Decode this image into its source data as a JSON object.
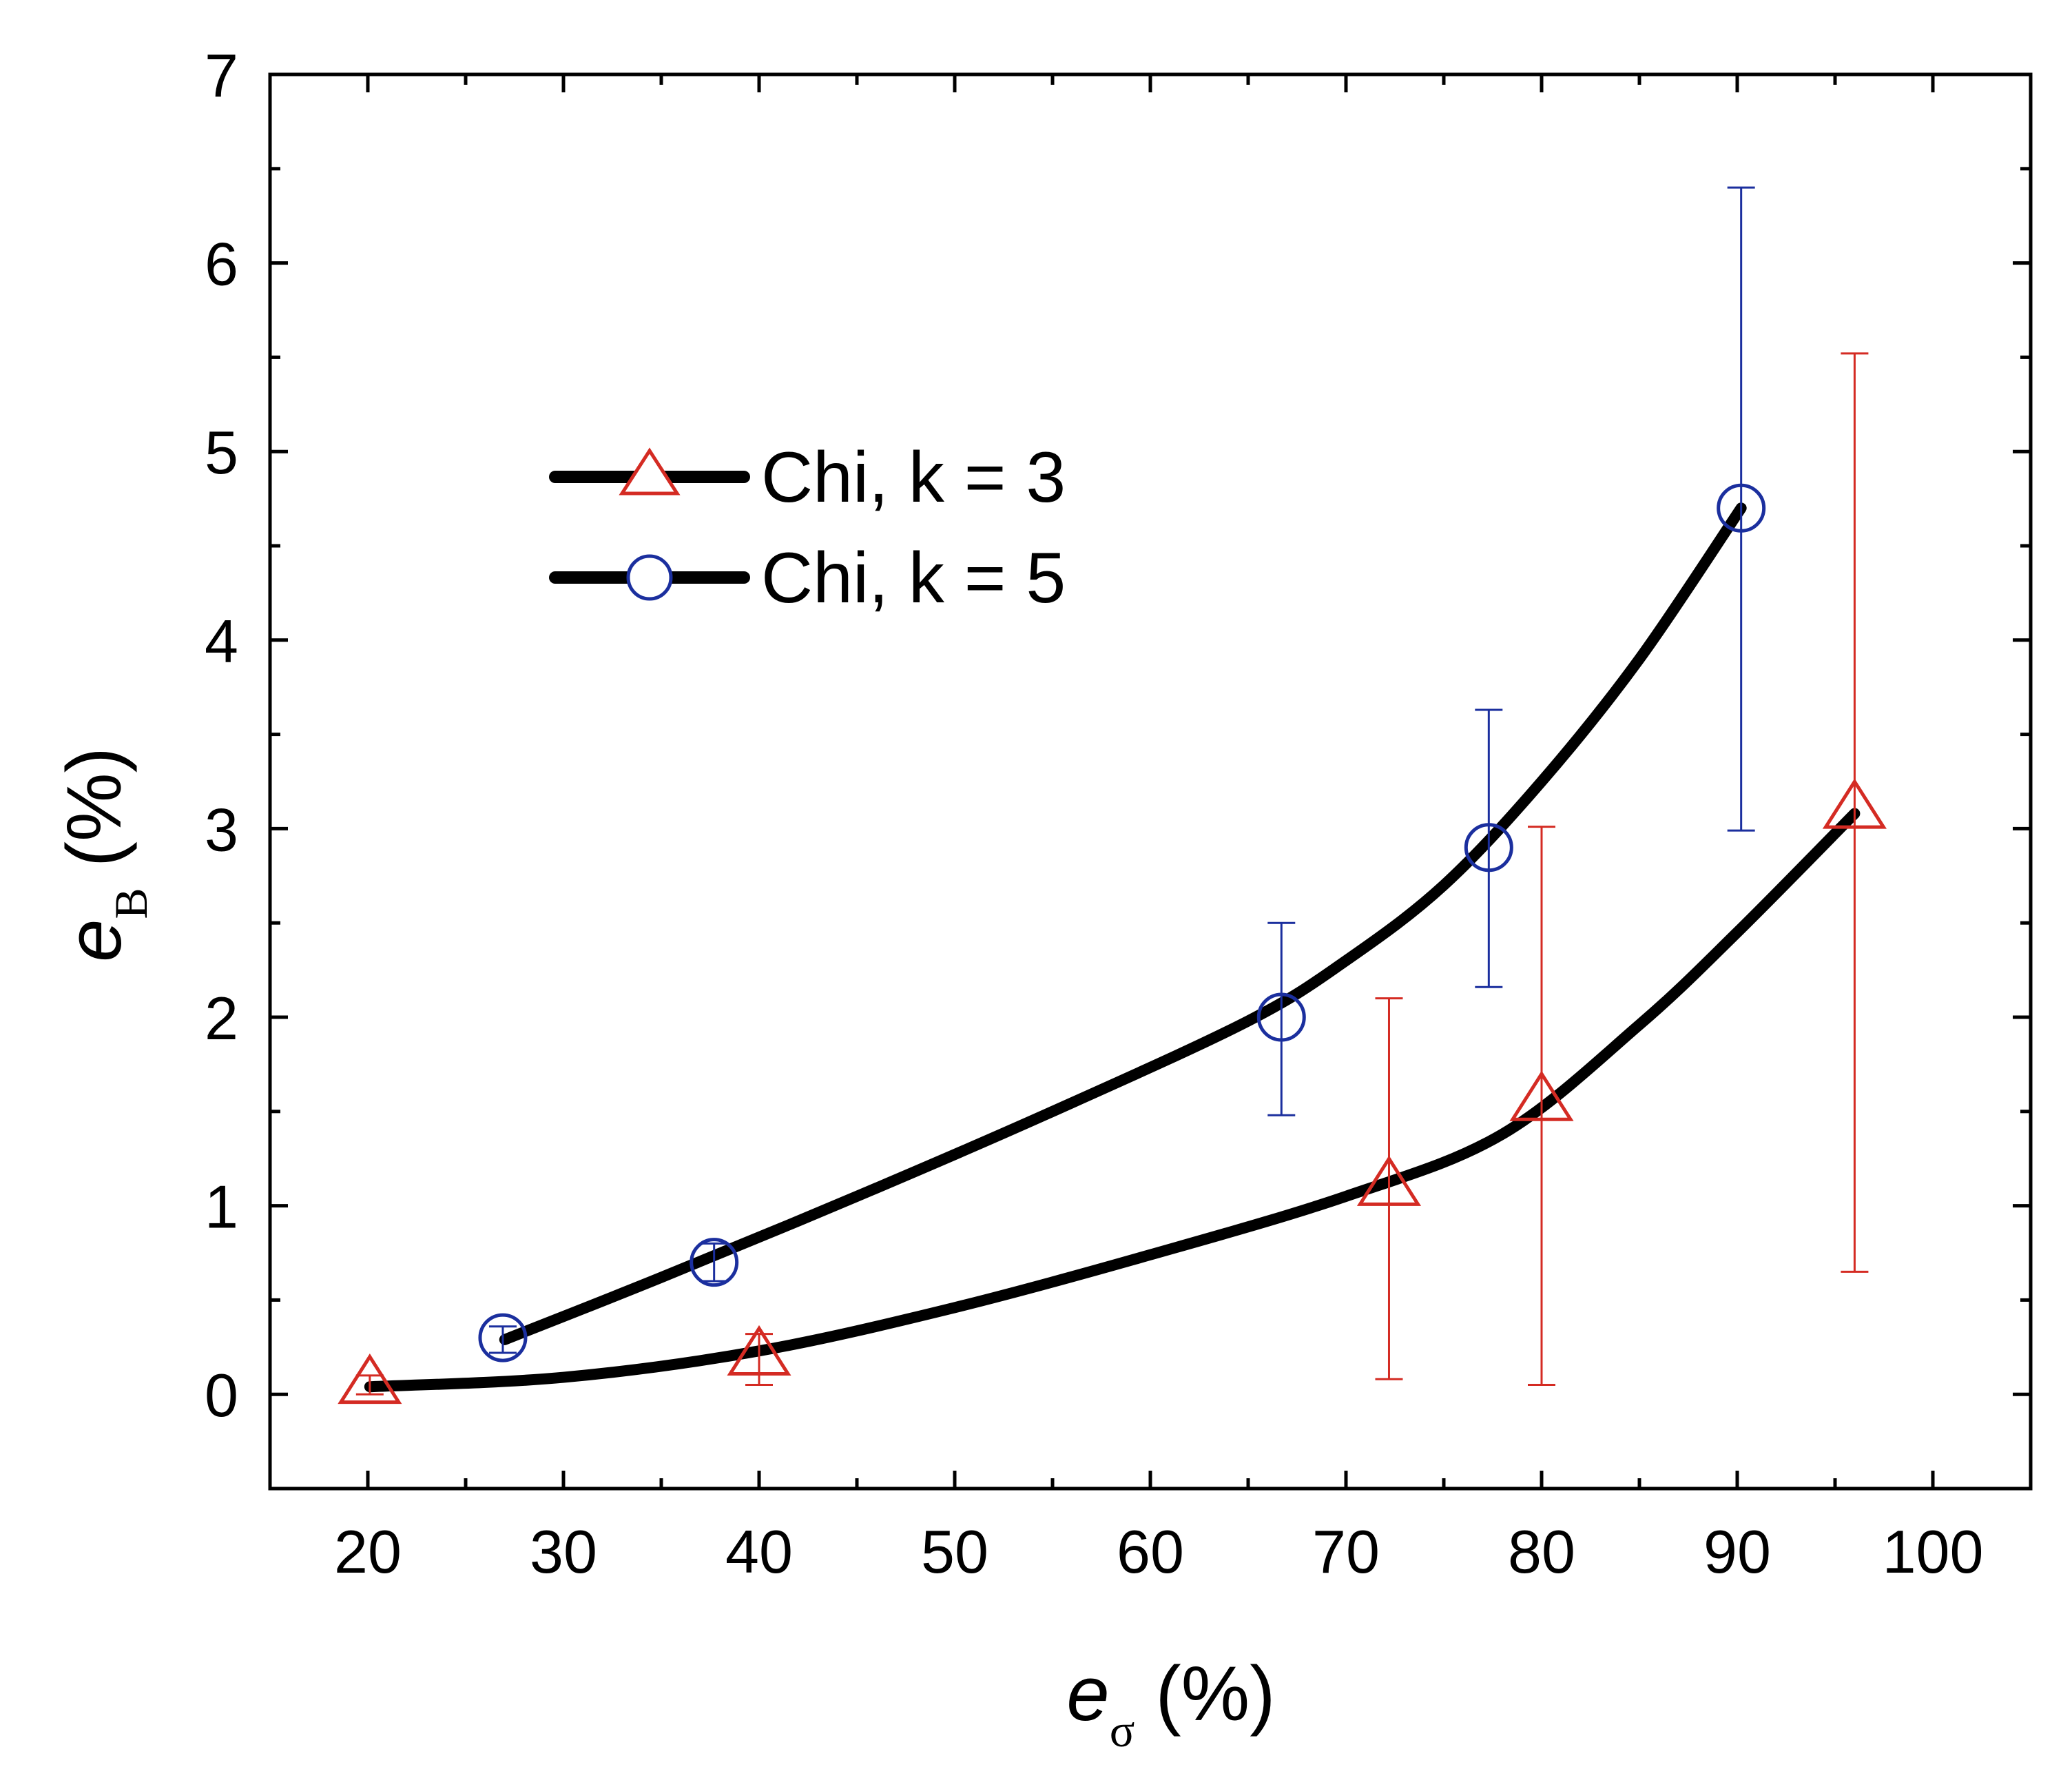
{
  "chart_data": {
    "type": "scatter",
    "title": "",
    "xlabel": {
      "symbol": "e",
      "subscript": "σ",
      "unit": "(%)"
    },
    "ylabel": {
      "symbol": "e",
      "subscript": "B",
      "unit": "(%)"
    },
    "xlim": [
      15,
      105
    ],
    "ylim": [
      -0.5,
      7
    ],
    "x_ticks": [
      20,
      30,
      40,
      50,
      60,
      70,
      80,
      90,
      100
    ],
    "y_ticks": [
      0,
      1,
      2,
      3,
      4,
      5,
      6,
      7
    ],
    "x_minor_ticks": [
      15,
      25,
      35,
      45,
      55,
      65,
      75,
      85,
      95,
      105
    ],
    "y_minor_ticks": [
      -0.5,
      0.5,
      1.5,
      2.5,
      3.5,
      4.5,
      5.5,
      6.5
    ],
    "legend_position": "upper-left",
    "series": [
      {
        "name": "Chi, k = 3",
        "marker": "triangle",
        "color": "#d42b23",
        "line_color": "#000000",
        "points": [
          {
            "x": 20.1,
            "y": 0.05,
            "err_low": 0.05,
            "err_high": 0.05
          },
          {
            "x": 40.0,
            "y": 0.2,
            "err_low": 0.15,
            "err_high": 0.12
          },
          {
            "x": 72.2,
            "y": 1.1,
            "err_low": 1.02,
            "err_high": 1.0
          },
          {
            "x": 80.0,
            "y": 1.55,
            "err_low": 1.5,
            "err_high": 1.46
          },
          {
            "x": 96.0,
            "y": 3.1,
            "err_low": 2.45,
            "err_high": 2.42
          }
        ],
        "fit_curve": [
          [
            20.1,
            0.04
          ],
          [
            30,
            0.09
          ],
          [
            40,
            0.23
          ],
          [
            50,
            0.46
          ],
          [
            60,
            0.74
          ],
          [
            70,
            1.05
          ],
          [
            78,
            1.38
          ],
          [
            85,
            1.96
          ],
          [
            90,
            2.45
          ],
          [
            96,
            3.08
          ]
        ]
      },
      {
        "name": "Chi, k = 5",
        "marker": "circle",
        "color": "#1b2f9e",
        "line_color": "#000000",
        "points": [
          {
            "x": 26.9,
            "y": 0.3,
            "err_low": 0.08,
            "err_high": 0.06
          },
          {
            "x": 37.7,
            "y": 0.7,
            "err_low": 0.1,
            "err_high": 0.1
          },
          {
            "x": 66.7,
            "y": 2.0,
            "err_low": 0.52,
            "err_high": 0.5
          },
          {
            "x": 77.3,
            "y": 2.9,
            "err_low": 0.74,
            "err_high": 0.73
          },
          {
            "x": 90.2,
            "y": 4.7,
            "err_low": 1.71,
            "err_high": 1.7
          }
        ],
        "fit_curve": [
          [
            27,
            0.29
          ],
          [
            35,
            0.62
          ],
          [
            45,
            1.05
          ],
          [
            55,
            1.5
          ],
          [
            65,
            1.98
          ],
          [
            70,
            2.3
          ],
          [
            75,
            2.7
          ],
          [
            80,
            3.25
          ],
          [
            85,
            3.9
          ],
          [
            90.2,
            4.7
          ]
        ]
      }
    ]
  }
}
